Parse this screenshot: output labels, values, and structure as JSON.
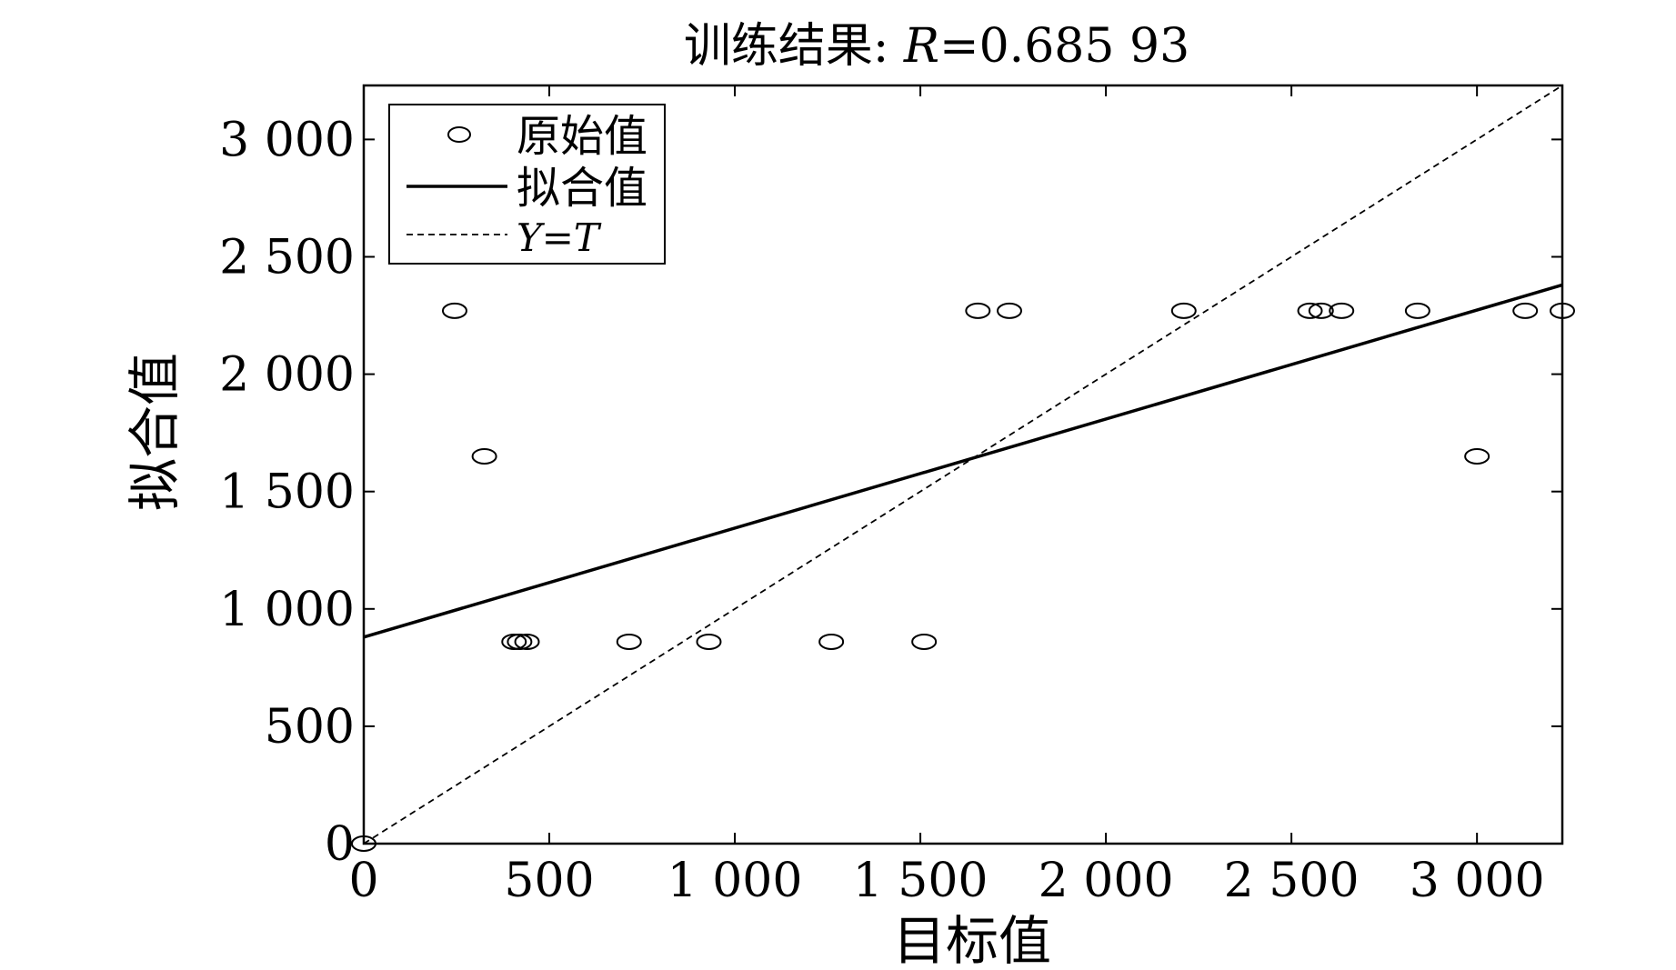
{
  "chart_data": {
    "type": "scatter",
    "title": "训练结果: R=0.685 93",
    "title_prefix": "训练结果: ",
    "title_R": "R",
    "title_value": "=0.685 93",
    "xlabel": "目标值",
    "ylabel": "拟合值",
    "xlim": [
      0,
      3230
    ],
    "ylim": [
      0,
      3230
    ],
    "xticks": [
      0,
      500,
      1000,
      1500,
      2000,
      2500,
      3000
    ],
    "xtick_labels": [
      "0",
      "500",
      "1 000",
      "1 500",
      "2 000",
      "2 500",
      "3 000"
    ],
    "yticks": [
      0,
      500,
      1000,
      1500,
      2000,
      2500,
      3000
    ],
    "ytick_labels": [
      "0",
      "500",
      "1 000",
      "1 500",
      "2 000",
      "2 500",
      "3 000"
    ],
    "legend": {
      "position": "top-left",
      "entries": [
        {
          "label": "原始值",
          "style": "marker-circle"
        },
        {
          "label": "拟合值",
          "style": "solid-line"
        },
        {
          "label": "Y=T",
          "style": "dashed-line",
          "italic": true
        }
      ]
    },
    "series": [
      {
        "name": "原始值",
        "kind": "points",
        "x": [
          0,
          245,
          325,
          405,
          420,
          440,
          715,
          930,
          1260,
          1510,
          1655,
          1740,
          2210,
          2550,
          2580,
          2635,
          2840,
          3000,
          3130,
          3230
        ],
        "y": [
          0,
          2270,
          1650,
          860,
          860,
          860,
          860,
          860,
          860,
          860,
          2270,
          2270,
          2270,
          2270,
          2270,
          2270,
          2270,
          1650,
          2270,
          2270
        ]
      },
      {
        "name": "拟合值",
        "kind": "line",
        "x": [
          0,
          3230
        ],
        "y": [
          880,
          2380
        ]
      },
      {
        "name": "Y=T",
        "kind": "dashed-line",
        "x": [
          0,
          3230
        ],
        "y": [
          0,
          3230
        ]
      }
    ],
    "grid": false,
    "colors": {
      "ink": "#000000",
      "background": "#ffffff"
    }
  }
}
